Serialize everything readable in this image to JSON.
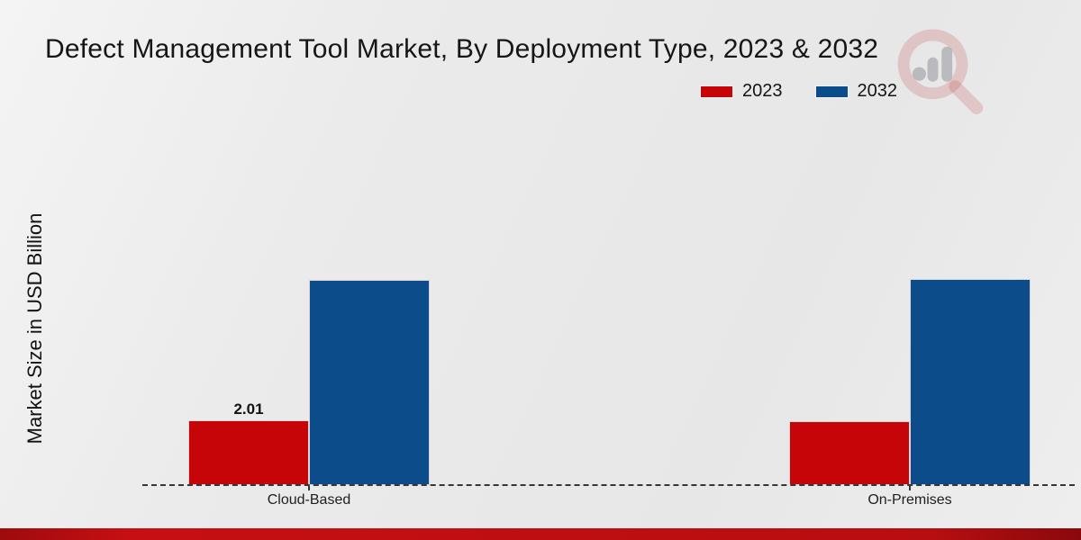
{
  "title": "Defect Management Tool Market, By Deployment Type, 2023 & 2032",
  "ylabel": "Market Size in USD Billion",
  "legend": [
    {
      "label": "2023",
      "color": "#c50508"
    },
    {
      "label": "2032",
      "color": "#0d4c8b"
    }
  ],
  "watermark_icon": "magnifier-bar-chart-logo",
  "footer": {
    "accent_color": "#b30e10"
  },
  "chart_data": {
    "type": "bar",
    "categories": [
      "Cloud-Based",
      "On-Premises"
    ],
    "series": [
      {
        "name": "2023",
        "color": "#c50508",
        "values": [
          2.01,
          1.98
        ],
        "labels": [
          "2.01",
          ""
        ]
      },
      {
        "name": "2032",
        "color": "#0d4c8b",
        "values": [
          6.37,
          6.38
        ],
        "labels": [
          "",
          ""
        ]
      }
    ],
    "title": "Defect Management Tool Market, By Deployment Type, 2023 & 2032",
    "xlabel": "",
    "ylabel": "Market Size in USD Billion",
    "ylim": [
      0,
      7.6
    ],
    "grid": false,
    "legend_position": "top-right",
    "baseline_style": "dashed",
    "value_labels_shown": [
      "2.01"
    ]
  }
}
